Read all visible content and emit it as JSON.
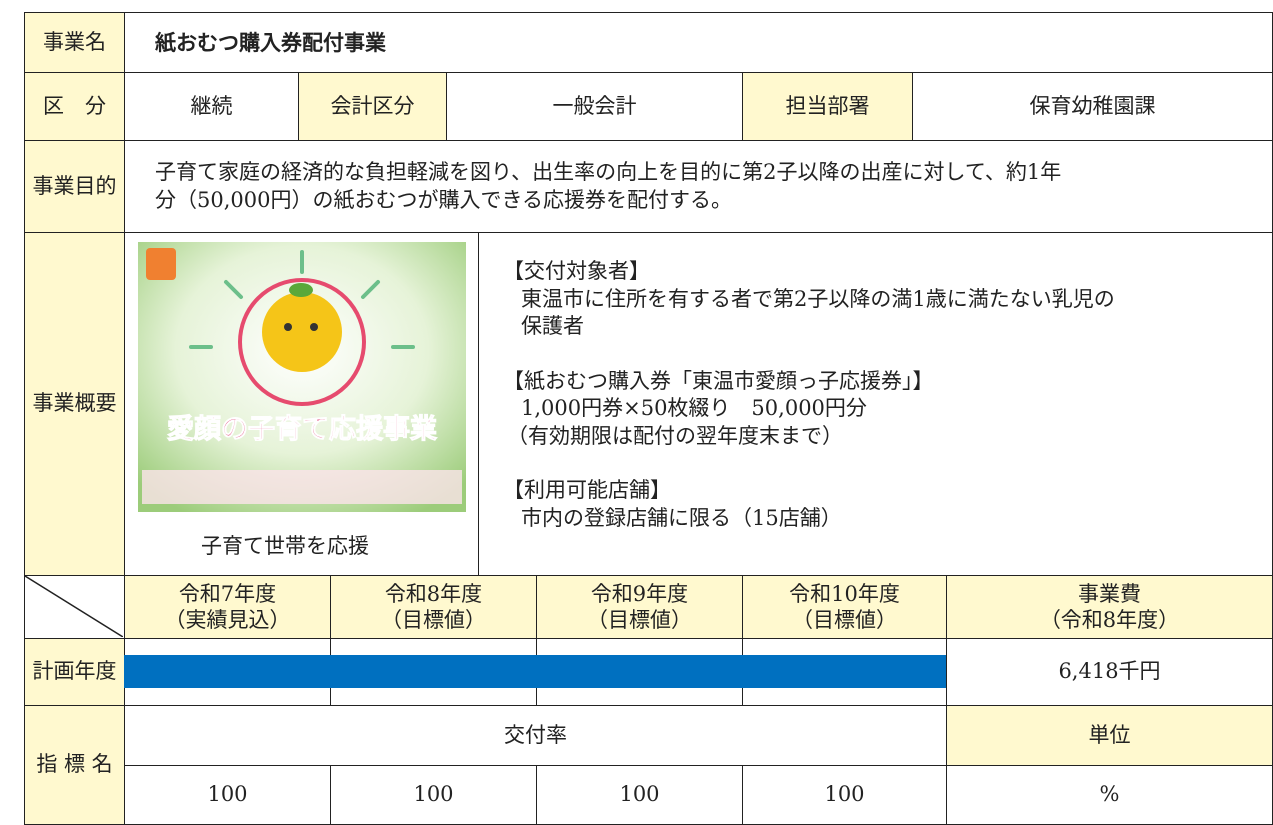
{
  "header": {
    "label": "事業名",
    "title": "紙おむつ購入券配付事業"
  },
  "category_row": {
    "label": "区　分",
    "value": "継続",
    "accounting_label": "会計区分",
    "accounting": "一般会計",
    "department_label": "担当部署",
    "department": "保育幼稚園課"
  },
  "purpose": {
    "label": "事業目的",
    "lines": [
      "子育て家庭の経済的な負担軽減を図り、出生率の向上を目的に第2子以降の出産に対して、約1年",
      "分（50,000円）の紙おむつが購入できる応援券を配付する。"
    ]
  },
  "overview": {
    "label": "事業概要",
    "image_title": "愛顔の子育て応援事業",
    "caption": "子育て世帯を応援",
    "sections": [
      {
        "heading": "【交付対象者】",
        "lines": [
          "東温市に住所を有する者で第2子以降の満1歳に満たない乳児の",
          "保護者"
        ]
      },
      {
        "heading": "【紙おむつ購入券「東温市愛顔っ子応援券」】",
        "lines": [
          "1,000円券×50枚綴り　50,000円分",
          "（有効期限は配付の翌年度末まで）"
        ]
      },
      {
        "heading": "【利用可能店舗】",
        "lines": [
          "市内の登録店舗に限る（15店舗）"
        ]
      }
    ]
  },
  "plan": {
    "label": "計画年度",
    "years": [
      {
        "year": "令和7年度",
        "note": "（実績見込）"
      },
      {
        "year": "令和8年度",
        "note": "（目標値）"
      },
      {
        "year": "令和9年度",
        "note": "（目標値）"
      },
      {
        "year": "令和10年度",
        "note": "（目標値）"
      }
    ],
    "cost_label": "事業費",
    "cost_note": "（令和8年度）",
    "cost": "6,418千円"
  },
  "indicator": {
    "label": "指 標 名",
    "name": "交付率",
    "unit_label": "単位",
    "targets": [
      100,
      100,
      100,
      100
    ],
    "unit": "%"
  }
}
